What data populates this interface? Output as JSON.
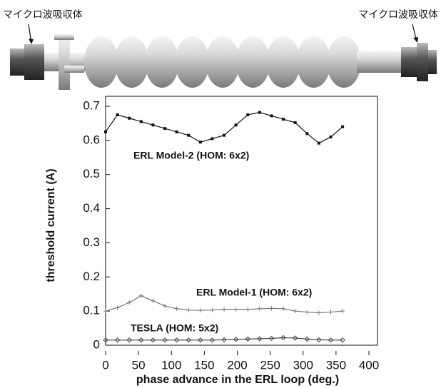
{
  "diagram": {
    "left_label": "マイクロ波吸収体",
    "right_label": "マイクロ波吸収体"
  },
  "chart_data": {
    "type": "line",
    "x_label": "phase advance in the ERL loop (deg.)",
    "y_label": "threshold current (A)",
    "x": [
      0,
      18,
      36,
      54,
      72,
      90,
      108,
      126,
      144,
      162,
      180,
      198,
      216,
      234,
      252,
      270,
      288,
      306,
      324,
      342,
      360
    ],
    "series": [
      {
        "name": "ERL Model-2 (HOM: 6x2)",
        "color": "#111111",
        "marker": "square",
        "values": [
          0.625,
          0.675,
          0.665,
          0.655,
          0.645,
          0.635,
          0.625,
          0.615,
          0.595,
          0.605,
          0.615,
          0.645,
          0.675,
          0.682,
          0.672,
          0.662,
          0.652,
          0.62,
          0.592,
          0.61,
          0.64
        ]
      },
      {
        "name": "ERL Model-1 (HOM: 6x2)",
        "color": "#777777",
        "marker": "plus",
        "values": [
          0.1,
          0.11,
          0.125,
          0.145,
          0.13,
          0.115,
          0.107,
          0.103,
          0.102,
          0.103,
          0.105,
          0.105,
          0.105,
          0.107,
          0.108,
          0.107,
          0.1,
          0.097,
          0.095,
          0.097,
          0.1
        ]
      },
      {
        "name": "TESLA (HOM: 5x2)",
        "color": "#444444",
        "marker": "diamond",
        "values": [
          0.015,
          0.015,
          0.015,
          0.015,
          0.015,
          0.015,
          0.015,
          0.015,
          0.015,
          0.015,
          0.016,
          0.017,
          0.018,
          0.019,
          0.02,
          0.022,
          0.021,
          0.018,
          0.016,
          0.015,
          0.015
        ]
      }
    ],
    "xlim": [
      0,
      400
    ],
    "xticks": [
      0,
      50,
      100,
      150,
      200,
      250,
      300,
      350,
      400
    ],
    "ylim": [
      0,
      0.7
    ],
    "yticks": [
      0,
      0.1,
      0.2,
      0.3,
      0.4,
      0.5,
      0.6,
      0.7
    ],
    "grid": false
  }
}
